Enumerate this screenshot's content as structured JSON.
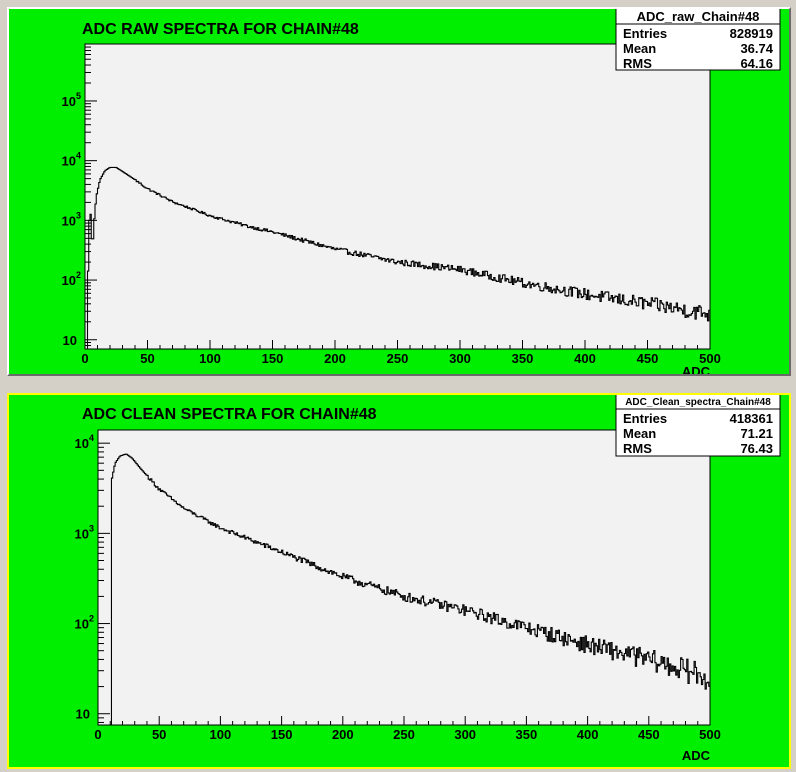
{
  "colors": {
    "pad": "#00ee00",
    "frame": "#f2f2f2",
    "histogram": "#000000"
  },
  "chart_data": [
    {
      "type": "histogram",
      "title": "ADC RAW SPECTRA FOR CHAIN#48",
      "xlabel": "ADC",
      "ylabel": "",
      "xlim": [
        0,
        500
      ],
      "ylim": [
        7,
        900000
      ],
      "yscale": "log",
      "grid": false,
      "x_ticks": [
        "0",
        "50",
        "100",
        "150",
        "200",
        "250",
        "300",
        "350",
        "400",
        "450",
        "500"
      ],
      "y_ticks": [
        {
          "base": "10",
          "exp": ""
        },
        {
          "base": "10",
          "exp": "2"
        },
        {
          "base": "10",
          "exp": "3"
        },
        {
          "base": "10",
          "exp": "4"
        },
        {
          "base": "10",
          "exp": "5"
        }
      ],
      "stats_box": {
        "name": "ADC_raw_Chain#48",
        "rows": [
          {
            "label": "Entries",
            "value": "828919"
          },
          {
            "label": "Mean",
            "value": "36.74"
          },
          {
            "label": "RMS",
            "value": "64.16"
          }
        ]
      },
      "bins": {
        "low": 0,
        "high": 500,
        "count": 500
      },
      "spectrum": [
        {
          "x": 0,
          "y": 0
        },
        {
          "x": 2,
          "y": 40
        },
        {
          "x": 3,
          "y": 500
        },
        {
          "x": 4,
          "y": 2000
        },
        {
          "x": 5,
          "y": 800
        },
        {
          "x": 6,
          "y": 300
        },
        {
          "x": 7,
          "y": 800
        },
        {
          "x": 9,
          "y": 2500
        },
        {
          "x": 12,
          "y": 4800
        },
        {
          "x": 16,
          "y": 6800
        },
        {
          "x": 20,
          "y": 7700
        },
        {
          "x": 25,
          "y": 7700
        },
        {
          "x": 30,
          "y": 6600
        },
        {
          "x": 40,
          "y": 4800
        },
        {
          "x": 50,
          "y": 3400
        },
        {
          "x": 70,
          "y": 2050
        },
        {
          "x": 100,
          "y": 1200
        },
        {
          "x": 130,
          "y": 800
        },
        {
          "x": 150,
          "y": 640
        },
        {
          "x": 200,
          "y": 330
        },
        {
          "x": 250,
          "y": 200
        },
        {
          "x": 300,
          "y": 150
        },
        {
          "x": 350,
          "y": 90
        },
        {
          "x": 400,
          "y": 58
        },
        {
          "x": 450,
          "y": 40
        },
        {
          "x": 500,
          "y": 27
        }
      ]
    },
    {
      "type": "histogram",
      "title": "ADC CLEAN SPECTRA FOR CHAIN#48",
      "xlabel": "ADC",
      "ylabel": "",
      "xlim": [
        0,
        500
      ],
      "ylim": [
        7.5,
        14000
      ],
      "yscale": "log",
      "grid": false,
      "x_ticks": [
        "0",
        "50",
        "100",
        "150",
        "200",
        "250",
        "300",
        "350",
        "400",
        "450",
        "500"
      ],
      "y_ticks": [
        {
          "base": "10",
          "exp": ""
        },
        {
          "base": "10",
          "exp": "2"
        },
        {
          "base": "10",
          "exp": "3"
        },
        {
          "base": "10",
          "exp": "4"
        }
      ],
      "stats_box": {
        "name": "ADC_Clean_spectra_Chain#48",
        "rows": [
          {
            "label": "Entries",
            "value": "418361"
          },
          {
            "label": "Mean",
            "value": "71.21"
          },
          {
            "label": "RMS",
            "value": "76.43"
          }
        ]
      },
      "bins": {
        "low": 0,
        "high": 500,
        "count": 500
      },
      "spectrum": [
        {
          "x": 0,
          "y": 0
        },
        {
          "x": 10,
          "y": 0
        },
        {
          "x": 11,
          "y": 3800
        },
        {
          "x": 14,
          "y": 6000
        },
        {
          "x": 18,
          "y": 7200
        },
        {
          "x": 23,
          "y": 7600
        },
        {
          "x": 28,
          "y": 6800
        },
        {
          "x": 35,
          "y": 5200
        },
        {
          "x": 50,
          "y": 3100
        },
        {
          "x": 70,
          "y": 1900
        },
        {
          "x": 100,
          "y": 1150
        },
        {
          "x": 150,
          "y": 620
        },
        {
          "x": 200,
          "y": 330
        },
        {
          "x": 250,
          "y": 200
        },
        {
          "x": 300,
          "y": 140
        },
        {
          "x": 350,
          "y": 90
        },
        {
          "x": 400,
          "y": 58
        },
        {
          "x": 450,
          "y": 40
        },
        {
          "x": 500,
          "y": 25
        }
      ]
    }
  ]
}
